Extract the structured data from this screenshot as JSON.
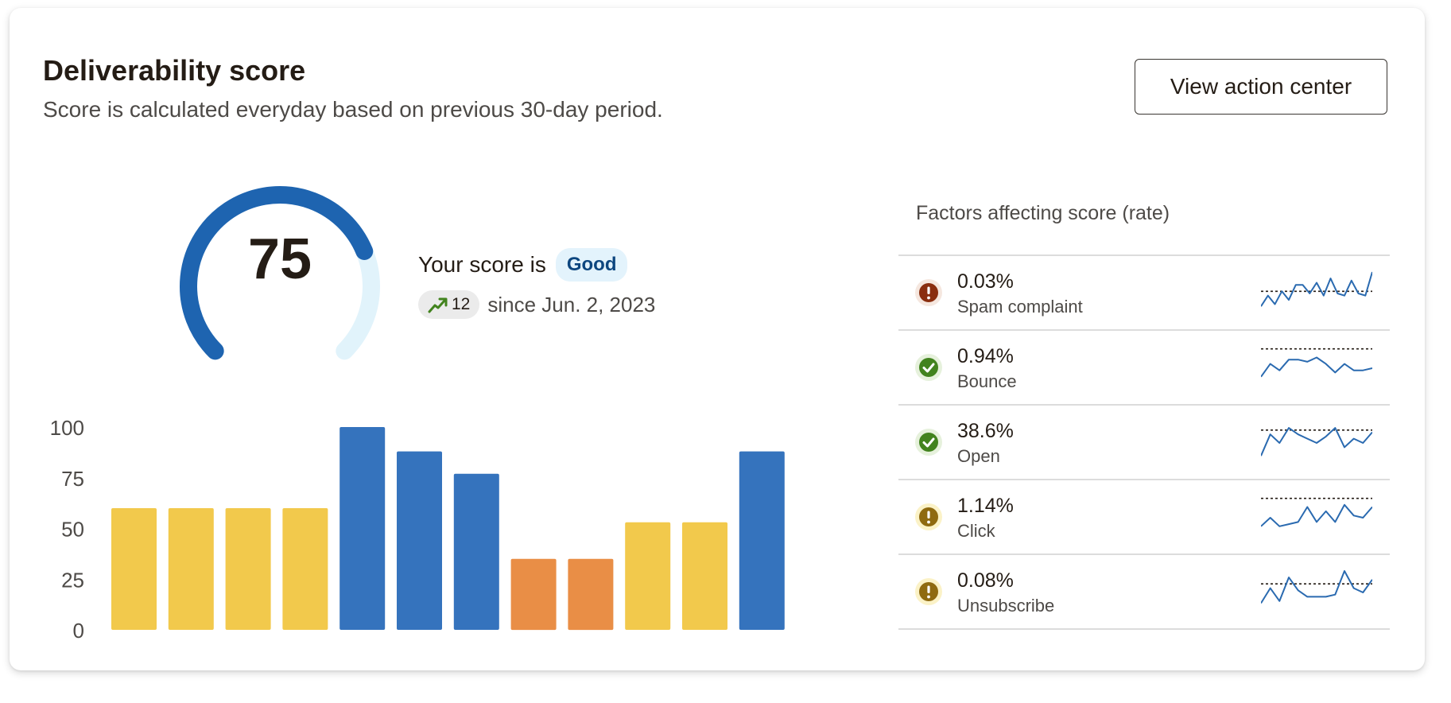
{
  "header": {
    "title": "Deliverability score",
    "subtitle": "Score is calculated everyday based on previous 30-day period.",
    "action_button": "View action center"
  },
  "score": {
    "value": "75",
    "max": 100,
    "label": "Your score is",
    "rating": "Good",
    "trend_change": "12",
    "trend_since": "since Jun. 2, 2023",
    "gauge_color": "#1e64b0",
    "gauge_track_color": "#e1f3fb"
  },
  "chart_data": {
    "type": "bar",
    "yticks": [
      "0",
      "25",
      "50",
      "75",
      "100"
    ],
    "ylim": [
      0,
      100
    ],
    "values": [
      60,
      60,
      60,
      60,
      100,
      88,
      77,
      35,
      35,
      53,
      53,
      88
    ],
    "bar_colors": [
      "#f2c94c",
      "#f2c94c",
      "#f2c94c",
      "#f2c94c",
      "#3573bd",
      "#3573bd",
      "#3573bd",
      "#e98e46",
      "#e98e46",
      "#f2c94c",
      "#f2c94c",
      "#3573bd"
    ]
  },
  "factors": {
    "title": "Factors affecting score (rate)",
    "items": [
      {
        "value": "0.03%",
        "label": "Spam complaint",
        "status": "alert",
        "icon": "exclamation-icon",
        "color": "#8a2e0f",
        "bg": "#f5e7df",
        "trend": [
          0.2,
          0.45,
          0.25,
          0.55,
          0.35,
          0.7,
          0.7,
          0.5,
          0.75,
          0.45,
          0.85,
          0.5,
          0.45,
          0.8,
          0.5,
          0.45,
          1.0
        ],
        "target": 0.55
      },
      {
        "value": "0.94%",
        "label": "Bounce",
        "status": "ok",
        "icon": "check-icon",
        "color": "#42831e",
        "bg": "#e6f1dc",
        "trend": [
          0.3,
          0.6,
          0.45,
          0.7,
          0.7,
          0.65,
          0.75,
          0.6,
          0.4,
          0.6,
          0.45,
          0.45,
          0.5
        ],
        "target": 0.95
      },
      {
        "value": "38.6%",
        "label": "Open",
        "status": "ok",
        "icon": "check-icon",
        "color": "#42831e",
        "bg": "#e6f1dc",
        "trend": [
          0.2,
          0.7,
          0.5,
          0.85,
          0.7,
          0.6,
          0.5,
          0.65,
          0.85,
          0.4,
          0.6,
          0.5,
          0.75
        ],
        "target": 0.8
      },
      {
        "value": "1.14%",
        "label": "Click",
        "status": "warning",
        "icon": "exclamation-icon",
        "color": "#8f6a10",
        "bg": "#fbf2c7",
        "trend": [
          0.3,
          0.5,
          0.3,
          0.35,
          0.4,
          0.75,
          0.4,
          0.65,
          0.4,
          0.8,
          0.55,
          0.5,
          0.75
        ],
        "target": 0.95
      },
      {
        "value": "0.08%",
        "label": "Unsubscribe",
        "status": "warning",
        "icon": "exclamation-icon",
        "color": "#8f6a10",
        "bg": "#fbf2c7",
        "trend": [
          0.25,
          0.6,
          0.3,
          0.85,
          0.55,
          0.4,
          0.4,
          0.4,
          0.45,
          1.0,
          0.6,
          0.5,
          0.8
        ],
        "target": 0.7
      }
    ]
  }
}
